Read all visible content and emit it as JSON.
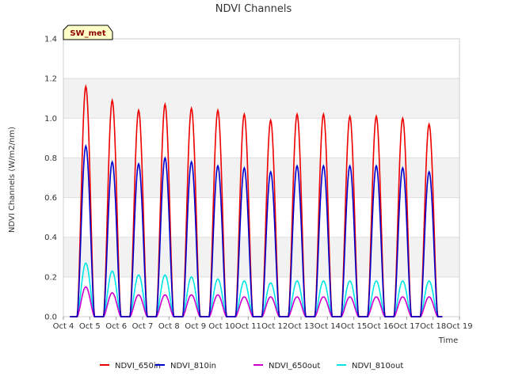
{
  "chart_data": {
    "type": "line",
    "title": "NDVI Channels",
    "xlabel": "Time",
    "ylabel": "NDVI Channels (W/m2/nm)",
    "badge": "SW_met",
    "xlim": [
      4,
      19
    ],
    "ylim": [
      0,
      1.4
    ],
    "x_ticks": [
      4,
      5,
      6,
      7,
      8,
      9,
      10,
      11,
      12,
      13,
      14,
      15,
      16,
      17,
      18,
      19
    ],
    "x_tick_labels": [
      "Oct 4",
      "Oct 5",
      "Oct 6",
      "Oct 7",
      "Oct 8",
      "Oct 9",
      "Oct 10",
      "Oct 11",
      "Oct 12",
      "Oct 13",
      "Oct 14",
      "Oct 15",
      "Oct 16",
      "Oct 17",
      "Oct 18",
      "Oct 19"
    ],
    "y_ticks": [
      0.0,
      0.2,
      0.4,
      0.6,
      0.8,
      1.0,
      1.2,
      1.4
    ],
    "y_tick_labels": [
      "0.0",
      "0.2",
      "0.4",
      "0.6",
      "0.8",
      "1.0",
      "1.2",
      "1.4"
    ],
    "legend_position": "bottom",
    "day_centers": [
      4.85,
      5.85,
      6.85,
      7.85,
      8.85,
      9.85,
      10.85,
      11.85,
      12.85,
      13.85,
      14.85,
      15.85,
      16.85,
      17.85
    ],
    "series": [
      {
        "name": "NDVI_650in",
        "color": "#ee0000",
        "peaks": [
          1.16,
          1.09,
          1.04,
          1.07,
          1.05,
          1.04,
          1.02,
          0.99,
          1.02,
          1.02,
          1.01,
          1.01,
          1.0,
          0.97
        ]
      },
      {
        "name": "NDVI_810in",
        "color": "#0000cc",
        "peaks": [
          0.86,
          0.78,
          0.77,
          0.8,
          0.78,
          0.76,
          0.75,
          0.73,
          0.76,
          0.76,
          0.76,
          0.76,
          0.75,
          0.73
        ]
      },
      {
        "name": "NDVI_650out",
        "color": "#cc00cc",
        "peaks": [
          0.15,
          0.12,
          0.11,
          0.11,
          0.11,
          0.11,
          0.1,
          0.1,
          0.1,
          0.1,
          0.1,
          0.1,
          0.1,
          0.1
        ]
      },
      {
        "name": "NDVI_810out",
        "color": "#00e5e5",
        "peaks": [
          0.27,
          0.23,
          0.21,
          0.21,
          0.2,
          0.19,
          0.18,
          0.17,
          0.18,
          0.18,
          0.18,
          0.18,
          0.18,
          0.18
        ]
      }
    ]
  }
}
